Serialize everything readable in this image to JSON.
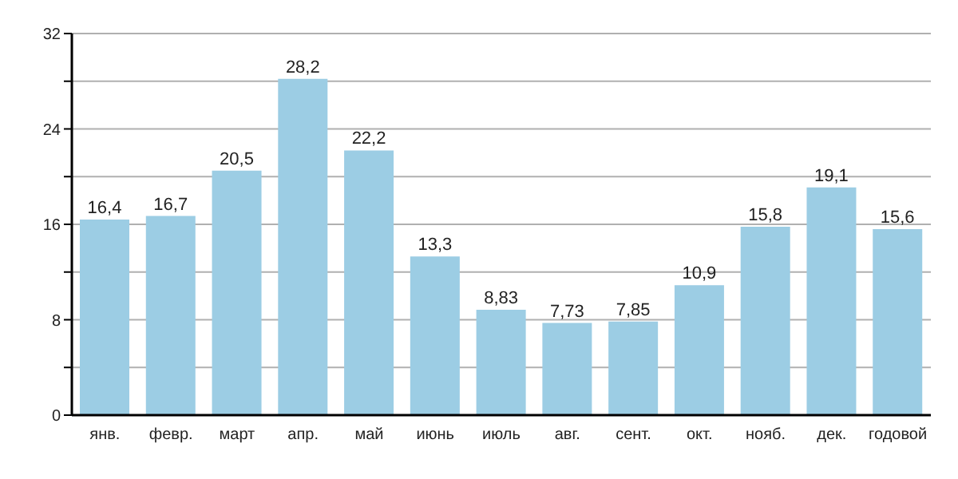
{
  "chart_data": {
    "type": "bar",
    "categories": [
      "янв.",
      "февр.",
      "март",
      "апр.",
      "май",
      "июнь",
      "июль",
      "авг.",
      "сент.",
      "окт.",
      "нояб.",
      "дек.",
      "годовой"
    ],
    "values": [
      16.4,
      16.7,
      20.5,
      28.2,
      22.2,
      13.3,
      8.83,
      7.73,
      7.85,
      10.9,
      15.8,
      19.1,
      15.6
    ],
    "value_labels": [
      "16,4",
      "16,7",
      "20,5",
      "28,2",
      "22,2",
      "13,3",
      "8,83",
      "7,73",
      "7,85",
      "10,9",
      "15,8",
      "19,1",
      "15,6"
    ],
    "color": "#9ccde4",
    "ylim": [
      0,
      32
    ],
    "yticks": [
      0,
      {
        "value": 4,
        "label": null
      },
      8,
      {
        "value": 12,
        "label": null
      },
      16,
      {
        "value": 20,
        "label": null
      },
      24,
      {
        "value": 28,
        "label": null
      },
      32
    ],
    "grid": "y"
  }
}
